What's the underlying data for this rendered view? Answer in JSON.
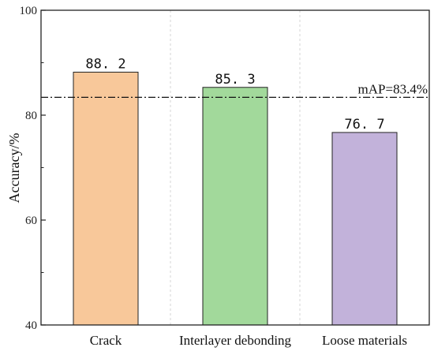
{
  "chart_data": {
    "type": "bar",
    "title": "",
    "xlabel": "",
    "ylabel": "Accuracy/%",
    "categories": [
      "Crack",
      "Interlayer debonding",
      "Loose materials"
    ],
    "values": [
      88.2,
      85.3,
      76.7
    ],
    "data_labels": [
      "88. 2",
      "85. 3",
      "76. 7"
    ],
    "colors": [
      "#f8c89a",
      "#a2d99b",
      "#c2b2da"
    ],
    "ylim": [
      40,
      100
    ],
    "yticks": [
      40,
      60,
      80,
      100
    ],
    "reference_line": {
      "value": 83.4,
      "label": "mAP=83.4%",
      "style": "dash-dot"
    },
    "grid": "vertical-separators"
  }
}
